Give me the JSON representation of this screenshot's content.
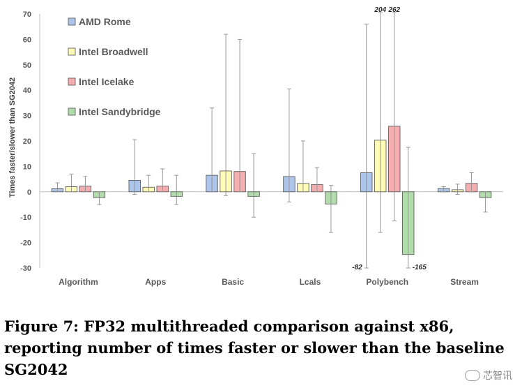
{
  "chart_data": {
    "type": "bar",
    "title": "",
    "xlabel": "",
    "ylabel": "Times faster/slower than SG2042",
    "ylim": [
      -30,
      70
    ],
    "yticks": [
      -30,
      -20,
      -10,
      0,
      10,
      20,
      30,
      40,
      50,
      60,
      70
    ],
    "categories": [
      "Algorithm",
      "Apps",
      "Basic",
      "Lcals",
      "Polybench",
      "Stream"
    ],
    "legend_position": "top-left",
    "grid": false,
    "series": [
      {
        "name": "AMD Rome",
        "color": "#aec5ea",
        "values": [
          1.2,
          4.5,
          6.5,
          6.0,
          7.5,
          1.3
        ],
        "err_low": [
          0,
          -1,
          0,
          -4,
          -82,
          0
        ],
        "err_high": [
          3.5,
          20.5,
          33,
          40.5,
          66,
          2
        ]
      },
      {
        "name": "Intel Broadwell",
        "color": "#fdfbb6",
        "values": [
          2.0,
          1.8,
          8.2,
          3.3,
          20.3,
          0.8
        ],
        "err_low": [
          0,
          0,
          -1.5,
          0,
          -16,
          -1
        ],
        "err_high": [
          7,
          6.5,
          62,
          20,
          204,
          3
        ]
      },
      {
        "name": "Intel Icelake",
        "color": "#f4aeb0",
        "values": [
          2.2,
          2.2,
          8.0,
          2.8,
          25.8,
          3.3
        ],
        "err_low": [
          0,
          0,
          0,
          0,
          -11.5,
          0
        ],
        "err_high": [
          6,
          9,
          60,
          9.5,
          262,
          7.5
        ]
      },
      {
        "name": "Intel Sandybridge",
        "color": "#b3dcad",
        "values": [
          -2.3,
          -1.8,
          -1.8,
          -4.8,
          -24.7,
          -2.3
        ],
        "err_low": [
          -5,
          -5,
          -10,
          -16,
          -165,
          -8
        ],
        "err_high": [
          0,
          6.5,
          15,
          2.5,
          17.5,
          0
        ]
      }
    ],
    "annotations": [
      {
        "text": "204",
        "category": "Polybench",
        "series": "Intel Broadwell"
      },
      {
        "text": "262",
        "category": "Polybench",
        "series": "Intel Icelake"
      },
      {
        "text": "-82",
        "category": "Polybench",
        "series": "AMD Rome"
      },
      {
        "text": "-165",
        "category": "Polybench",
        "series": "Intel Sandybridge"
      }
    ]
  },
  "caption": "Figure 7: FP32 multithreaded comparison against x86, reporting number of times faster or slower than the baseline SG2042",
  "watermark": "芯智讯"
}
